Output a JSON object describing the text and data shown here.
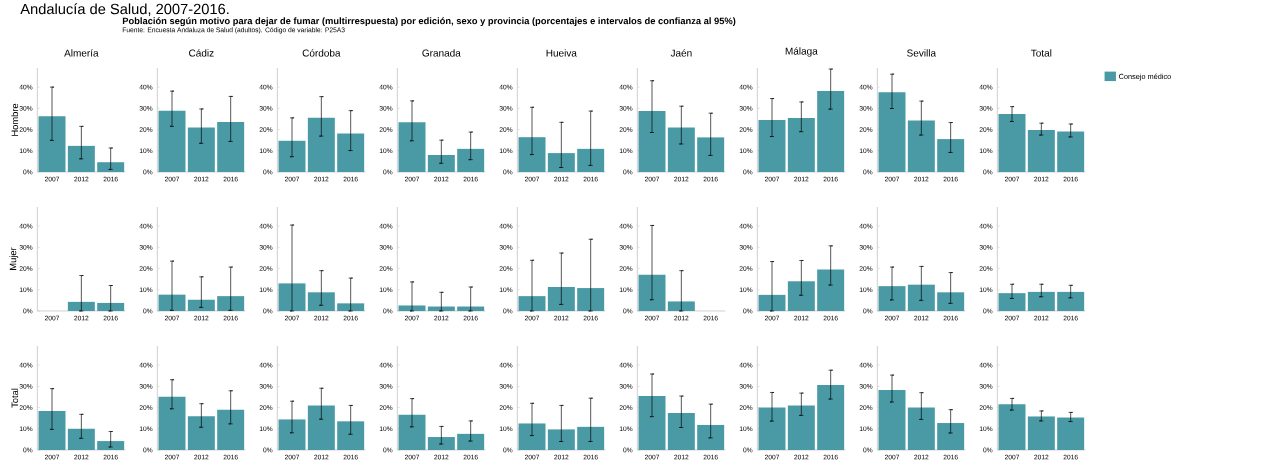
{
  "chart_data": [
    {
      "type": "bar",
      "title": "Almería",
      "ylabel": "Hombre",
      "annotations": [
        "Andalucía de Salud, 2007-2016.",
        "Población según motivo para dejar de fumar (multirrespuesta) por edición, sexo y provincia (porcentajes e intervalos de confianza al 95%)",
        "Fuente: Encuesta Andaluza de Salud (adultos). Código de variable: P25A3"
      ],
      "categories": [
        "2007",
        "2012",
        "2016"
      ],
      "series": [
        {
          "color": "#4a9aa5",
          "values": [
            26.3,
            12.3,
            4.6
          ],
          "errors": [
            [
              14.9,
              40.0
            ],
            [
              6.2,
              21.5
            ],
            [
              1.2,
              11.3
            ]
          ]
        }
      ],
      "ylim": [
        0,
        49
      ],
      "yticks": [
        {
          "value": 0,
          "label": "0%"
        },
        {
          "value": 10,
          "label": "10%"
        },
        {
          "value": 20,
          "label": "20%"
        },
        {
          "value": 30,
          "label": "30%"
        },
        {
          "value": 40,
          "label": "40%"
        }
      ]
    },
    {
      "type": "bar",
      "title": "Cádiz",
      "categories": [
        "2007",
        "2012",
        "2016"
      ],
      "series": [
        {
          "color": "#4a9aa5",
          "values": [
            28.9,
            21.0,
            23.6
          ],
          "errors": [
            [
              21.5,
              38.1
            ],
            [
              13.5,
              29.7
            ],
            [
              14.4,
              35.6
            ]
          ]
        }
      ],
      "ylim": [
        0,
        49
      ],
      "yticks": [
        {
          "value": 0,
          "label": "0%"
        },
        {
          "value": 10,
          "label": "10%"
        },
        {
          "value": 20,
          "label": "20%"
        },
        {
          "value": 30,
          "label": "30%"
        },
        {
          "value": 40,
          "label": "40%"
        }
      ]
    },
    {
      "type": "bar",
      "title": "Córdoba",
      "categories": [
        "2007",
        "2012",
        "2016"
      ],
      "series": [
        {
          "color": "#4a9aa5",
          "values": [
            14.7,
            25.5,
            18.1
          ],
          "errors": [
            [
              7.2,
              25.5
            ],
            [
              16.9,
              35.5
            ],
            [
              10.1,
              28.9
            ]
          ]
        }
      ],
      "ylim": [
        0,
        49
      ],
      "yticks": [
        {
          "value": 0,
          "label": "0%"
        },
        {
          "value": 10,
          "label": "10%"
        },
        {
          "value": 20,
          "label": "20%"
        },
        {
          "value": 30,
          "label": "30%"
        },
        {
          "value": 40,
          "label": "40%"
        }
      ]
    },
    {
      "type": "bar",
      "title": "Granada",
      "categories": [
        "2007",
        "2012",
        "2016"
      ],
      "series": [
        {
          "color": "#4a9aa5",
          "values": [
            23.4,
            8.0,
            10.9
          ],
          "errors": [
            [
              14.7,
              33.5
            ],
            [
              4.1,
              15.0
            ],
            [
              5.8,
              18.8
            ]
          ]
        }
      ],
      "ylim": [
        0,
        49
      ],
      "yticks": [
        {
          "value": 0,
          "label": "0%"
        },
        {
          "value": 10,
          "label": "10%"
        },
        {
          "value": 20,
          "label": "20%"
        },
        {
          "value": 30,
          "label": "30%"
        },
        {
          "value": 40,
          "label": "40%"
        }
      ]
    },
    {
      "type": "bar",
      "title": "Hueiva",
      "categories": [
        "2007",
        "2012",
        "2016"
      ],
      "series": [
        {
          "color": "#4a9aa5",
          "values": [
            16.4,
            8.9,
            10.9
          ],
          "errors": [
            [
              8.2,
              30.5
            ],
            [
              2.1,
              23.4
            ],
            [
              3.1,
              28.7
            ]
          ]
        }
      ],
      "ylim": [
        0,
        49
      ],
      "yticks": [
        {
          "value": 0,
          "label": "0%"
        },
        {
          "value": 10,
          "label": "10%"
        },
        {
          "value": 20,
          "label": "20%"
        },
        {
          "value": 30,
          "label": "30%"
        },
        {
          "value": 40,
          "label": "40%"
        }
      ]
    },
    {
      "type": "bar",
      "title": "Jaén",
      "categories": [
        "2007",
        "2012",
        "2016"
      ],
      "series": [
        {
          "color": "#4a9aa5",
          "values": [
            28.7,
            21.0,
            16.3
          ],
          "errors": [
            [
              18.6,
              43.0
            ],
            [
              13.2,
              31.0
            ],
            [
              7.8,
              27.7
            ]
          ]
        }
      ],
      "ylim": [
        0,
        49
      ],
      "yticks": [
        {
          "value": 0,
          "label": "0%"
        },
        {
          "value": 10,
          "label": "10%"
        },
        {
          "value": 20,
          "label": "20%"
        },
        {
          "value": 30,
          "label": "30%"
        },
        {
          "value": 40,
          "label": "40%"
        }
      ]
    },
    {
      "type": "bar",
      "title": "Málaga",
      "categories": [
        "2007",
        "2012",
        "2016"
      ],
      "series": [
        {
          "color": "#4a9aa5",
          "values": [
            24.5,
            25.4,
            38.1
          ],
          "errors": [
            [
              16.7,
              34.6
            ],
            [
              19.0,
              33.0
            ],
            [
              29.6,
              48.5
            ]
          ]
        }
      ],
      "ylim": [
        0,
        49
      ],
      "yticks": [
        {
          "value": 0,
          "label": "0%"
        },
        {
          "value": 10,
          "label": "10%"
        },
        {
          "value": 20,
          "label": "20%"
        },
        {
          "value": 30,
          "label": "30%"
        },
        {
          "value": 40,
          "label": "40%"
        }
      ]
    },
    {
      "type": "bar",
      "title": "Sevilla",
      "categories": [
        "2007",
        "2012",
        "2016"
      ],
      "series": [
        {
          "color": "#4a9aa5",
          "values": [
            37.6,
            24.3,
            15.5
          ],
          "errors": [
            [
              29.9,
              46.1
            ],
            [
              17.4,
              33.4
            ],
            [
              9.2,
              23.3
            ]
          ]
        }
      ],
      "ylim": [
        0,
        49
      ],
      "yticks": [
        {
          "value": 0,
          "label": "0%"
        },
        {
          "value": 10,
          "label": "10%"
        },
        {
          "value": 20,
          "label": "20%"
        },
        {
          "value": 30,
          "label": "30%"
        },
        {
          "value": 40,
          "label": "40%"
        }
      ]
    },
    {
      "type": "bar",
      "title": "Total",
      "legend": "right",
      "categories": [
        "2007",
        "2012",
        "2016"
      ],
      "series": [
        {
          "name": "Consejo médico",
          "color": "#4a9aa5",
          "values": [
            27.3,
            19.8,
            19.1
          ],
          "errors": [
            [
              23.8,
              30.8
            ],
            [
              17.4,
              23.0
            ],
            [
              16.5,
              22.6
            ]
          ]
        }
      ],
      "ylim": [
        0,
        49
      ],
      "yticks": [
        {
          "value": 0,
          "label": "0%"
        },
        {
          "value": 10,
          "label": "10%"
        },
        {
          "value": 20,
          "label": "20%"
        },
        {
          "value": 30,
          "label": "30%"
        },
        {
          "value": 40,
          "label": "40%"
        }
      ]
    },
    {
      "type": "bar",
      "ylabel": "Mujer",
      "categories": [
        "2007",
        "2012",
        "2016"
      ],
      "series": [
        {
          "color": "#4a9aa5",
          "values": [
            null,
            4.3,
            3.8
          ],
          "errors": [
            null,
            [
              0,
              16.7
            ],
            [
              0,
              12.0
            ]
          ]
        }
      ],
      "ylim": [
        0,
        49
      ],
      "yticks": [
        {
          "value": 0,
          "label": "0%"
        },
        {
          "value": 10,
          "label": "10%"
        },
        {
          "value": 20,
          "label": "20%"
        },
        {
          "value": 30,
          "label": "30%"
        },
        {
          "value": 40,
          "label": "40%"
        }
      ]
    },
    {
      "type": "bar",
      "categories": [
        "2007",
        "2012",
        "2016"
      ],
      "series": [
        {
          "color": "#4a9aa5",
          "values": [
            7.7,
            5.3,
            7.0
          ],
          "errors": [
            [
              0.3,
              23.5
            ],
            [
              1.7,
              16.1
            ],
            [
              0.3,
              20.7
            ]
          ]
        }
      ],
      "ylim": [
        0,
        49
      ],
      "yticks": [
        {
          "value": 0,
          "label": "0%"
        },
        {
          "value": 10,
          "label": "10%"
        },
        {
          "value": 20,
          "label": "20%"
        },
        {
          "value": 30,
          "label": "30%"
        },
        {
          "value": 40,
          "label": "40%"
        }
      ]
    },
    {
      "type": "bar",
      "categories": [
        "2007",
        "2012",
        "2016"
      ],
      "series": [
        {
          "color": "#4a9aa5",
          "values": [
            13.0,
            8.8,
            3.6
          ],
          "errors": [
            [
              0,
              40.5
            ],
            [
              2.7,
              19.0
            ],
            [
              0,
              15.5
            ]
          ]
        }
      ],
      "ylim": [
        0,
        49
      ],
      "yticks": [
        {
          "value": 0,
          "label": "0%"
        },
        {
          "value": 10,
          "label": "10%"
        },
        {
          "value": 20,
          "label": "20%"
        },
        {
          "value": 30,
          "label": "30%"
        },
        {
          "value": 40,
          "label": "40%"
        }
      ]
    },
    {
      "type": "bar",
      "categories": [
        "2007",
        "2012",
        "2016"
      ],
      "series": [
        {
          "color": "#4a9aa5",
          "values": [
            2.6,
            2.1,
            2.1
          ],
          "errors": [
            [
              0,
              13.7
            ],
            [
              0,
              8.8
            ],
            [
              0,
              11.3
            ]
          ]
        }
      ],
      "ylim": [
        0,
        49
      ],
      "yticks": [
        {
          "value": 0,
          "label": "0%"
        },
        {
          "value": 10,
          "label": "10%"
        },
        {
          "value": 20,
          "label": "20%"
        },
        {
          "value": 30,
          "label": "30%"
        },
        {
          "value": 40,
          "label": "40%"
        }
      ]
    },
    {
      "type": "bar",
      "categories": [
        "2007",
        "2012",
        "2016"
      ],
      "series": [
        {
          "color": "#4a9aa5",
          "values": [
            7.0,
            11.3,
            10.8
          ],
          "errors": [
            [
              0,
              23.9
            ],
            [
              3.1,
              27.3
            ],
            [
              0,
              33.8
            ]
          ]
        }
      ],
      "ylim": [
        0,
        49
      ],
      "yticks": [
        {
          "value": 0,
          "label": "0%"
        },
        {
          "value": 10,
          "label": "10%"
        },
        {
          "value": 20,
          "label": "20%"
        },
        {
          "value": 30,
          "label": "30%"
        },
        {
          "value": 40,
          "label": "40%"
        }
      ]
    },
    {
      "type": "bar",
      "categories": [
        "2007",
        "2012",
        "2016"
      ],
      "series": [
        {
          "color": "#4a9aa5",
          "values": [
            17.1,
            4.5,
            null
          ],
          "errors": [
            [
              5.3,
              40.3
            ],
            [
              0,
              19.0
            ],
            null
          ]
        }
      ],
      "ylim": [
        0,
        49
      ],
      "yticks": [
        {
          "value": 0,
          "label": "0%"
        },
        {
          "value": 10,
          "label": "10%"
        },
        {
          "value": 20,
          "label": "20%"
        },
        {
          "value": 30,
          "label": "30%"
        },
        {
          "value": 40,
          "label": "40%"
        }
      ]
    },
    {
      "type": "bar",
      "categories": [
        "2007",
        "2012",
        "2016"
      ],
      "series": [
        {
          "color": "#4a9aa5",
          "values": [
            7.6,
            14.0,
            19.5
          ],
          "errors": [
            [
              0,
              23.3
            ],
            [
              7.4,
              23.8
            ],
            [
              12.2,
              30.7
            ]
          ]
        }
      ],
      "ylim": [
        0,
        49
      ],
      "yticks": [
        {
          "value": 0,
          "label": "0%"
        },
        {
          "value": 10,
          "label": "10%"
        },
        {
          "value": 20,
          "label": "20%"
        },
        {
          "value": 30,
          "label": "30%"
        },
        {
          "value": 40,
          "label": "40%"
        }
      ]
    },
    {
      "type": "bar",
      "categories": [
        "2007",
        "2012",
        "2016"
      ],
      "series": [
        {
          "color": "#4a9aa5",
          "values": [
            11.7,
            12.4,
            8.8
          ],
          "errors": [
            [
              5.2,
              20.7
            ],
            [
              5.0,
              21.0
            ],
            [
              3.6,
              18.1
            ]
          ]
        }
      ],
      "ylim": [
        0,
        49
      ],
      "yticks": [
        {
          "value": 0,
          "label": "0%"
        },
        {
          "value": 10,
          "label": "10%"
        },
        {
          "value": 20,
          "label": "20%"
        },
        {
          "value": 30,
          "label": "30%"
        },
        {
          "value": 40,
          "label": "40%"
        }
      ]
    },
    {
      "type": "bar",
      "categories": [
        "2007",
        "2012",
        "2016"
      ],
      "series": [
        {
          "color": "#4a9aa5",
          "values": [
            8.4,
            9.0,
            9.0
          ],
          "errors": [
            [
              5.9,
              12.6
            ],
            [
              6.7,
              12.6
            ],
            [
              6.2,
              12.1
            ]
          ]
        }
      ],
      "ylim": [
        0,
        49
      ],
      "yticks": [
        {
          "value": 0,
          "label": "0%"
        },
        {
          "value": 10,
          "label": "10%"
        },
        {
          "value": 20,
          "label": "20%"
        },
        {
          "value": 30,
          "label": "30%"
        },
        {
          "value": 40,
          "label": "40%"
        }
      ]
    },
    {
      "type": "bar",
      "ylabel": "Total",
      "categories": [
        "2007",
        "2012",
        "2016"
      ],
      "series": [
        {
          "color": "#4a9aa5",
          "values": [
            18.4,
            10.0,
            4.2
          ],
          "errors": [
            [
              9.7,
              28.9
            ],
            [
              5.5,
              16.8
            ],
            [
              1.4,
              8.7
            ]
          ]
        }
      ],
      "ylim": [
        0,
        49
      ],
      "yticks": [
        {
          "value": 0,
          "label": "0%"
        },
        {
          "value": 10,
          "label": "10%"
        },
        {
          "value": 20,
          "label": "20%"
        },
        {
          "value": 30,
          "label": "30%"
        },
        {
          "value": 40,
          "label": "40%"
        }
      ]
    },
    {
      "type": "bar",
      "categories": [
        "2007",
        "2012",
        "2016"
      ],
      "series": [
        {
          "color": "#4a9aa5",
          "values": [
            25.1,
            15.9,
            19.0
          ],
          "errors": [
            [
              19.4,
              33.1
            ],
            [
              10.7,
              21.8
            ],
            [
              12.3,
              27.9
            ]
          ]
        }
      ],
      "ylim": [
        0,
        49
      ],
      "yticks": [
        {
          "value": 0,
          "label": "0%"
        },
        {
          "value": 10,
          "label": "10%"
        },
        {
          "value": 20,
          "label": "20%"
        },
        {
          "value": 30,
          "label": "30%"
        },
        {
          "value": 40,
          "label": "40%"
        }
      ]
    },
    {
      "type": "bar",
      "categories": [
        "2007",
        "2012",
        "2016"
      ],
      "series": [
        {
          "color": "#4a9aa5",
          "values": [
            14.4,
            21.0,
            13.5
          ],
          "errors": [
            [
              8.1,
              23.0
            ],
            [
              14.5,
              29.1
            ],
            [
              7.4,
              21.0
            ]
          ]
        }
      ],
      "ylim": [
        0,
        49
      ],
      "yticks": [
        {
          "value": 0,
          "label": "0%"
        },
        {
          "value": 10,
          "label": "10%"
        },
        {
          "value": 20,
          "label": "20%"
        },
        {
          "value": 30,
          "label": "30%"
        },
        {
          "value": 40,
          "label": "40%"
        }
      ]
    },
    {
      "type": "bar",
      "categories": [
        "2007",
        "2012",
        "2016"
      ],
      "series": [
        {
          "color": "#4a9aa5",
          "values": [
            16.6,
            6.1,
            7.6
          ],
          "errors": [
            [
              10.9,
              24.2
            ],
            [
              2.8,
              11.1
            ],
            [
              4.2,
              13.7
            ]
          ]
        }
      ],
      "ylim": [
        0,
        49
      ],
      "yticks": [
        {
          "value": 0,
          "label": "0%"
        },
        {
          "value": 10,
          "label": "10%"
        },
        {
          "value": 20,
          "label": "20%"
        },
        {
          "value": 30,
          "label": "30%"
        },
        {
          "value": 40,
          "label": "40%"
        }
      ]
    },
    {
      "type": "bar",
      "categories": [
        "2007",
        "2012",
        "2016"
      ],
      "series": [
        {
          "color": "#4a9aa5",
          "values": [
            12.5,
            9.7,
            10.9
          ],
          "errors": [
            [
              6.8,
              22.0
            ],
            [
              4.0,
              21.0
            ],
            [
              4.0,
              24.4
            ]
          ]
        }
      ],
      "ylim": [
        0,
        49
      ],
      "yticks": [
        {
          "value": 0,
          "label": "0%"
        },
        {
          "value": 10,
          "label": "10%"
        },
        {
          "value": 20,
          "label": "20%"
        },
        {
          "value": 30,
          "label": "30%"
        },
        {
          "value": 40,
          "label": "40%"
        }
      ]
    },
    {
      "type": "bar",
      "categories": [
        "2007",
        "2012",
        "2016"
      ],
      "series": [
        {
          "color": "#4a9aa5",
          "values": [
            25.4,
            17.4,
            11.8
          ],
          "errors": [
            [
              15.7,
              35.8
            ],
            [
              10.6,
              25.4
            ],
            [
              5.7,
              21.6
            ]
          ]
        }
      ],
      "ylim": [
        0,
        49
      ],
      "yticks": [
        {
          "value": 0,
          "label": "0%"
        },
        {
          "value": 10,
          "label": "10%"
        },
        {
          "value": 20,
          "label": "20%"
        },
        {
          "value": 30,
          "label": "30%"
        },
        {
          "value": 40,
          "label": "40%"
        }
      ]
    },
    {
      "type": "bar",
      "categories": [
        "2007",
        "2012",
        "2016"
      ],
      "series": [
        {
          "color": "#4a9aa5",
          "values": [
            20.0,
            21.0,
            30.6
          ],
          "errors": [
            [
              13.6,
              27.1
            ],
            [
              16.3,
              26.8
            ],
            [
              24.0,
              37.6
            ]
          ]
        }
      ],
      "ylim": [
        0,
        49
      ],
      "yticks": [
        {
          "value": 0,
          "label": "0%"
        },
        {
          "value": 10,
          "label": "10%"
        },
        {
          "value": 20,
          "label": "20%"
        },
        {
          "value": 30,
          "label": "30%"
        },
        {
          "value": 40,
          "label": "40%"
        }
      ]
    },
    {
      "type": "bar",
      "categories": [
        "2007",
        "2012",
        "2016"
      ],
      "series": [
        {
          "color": "#4a9aa5",
          "values": [
            28.3,
            20.0,
            12.7
          ],
          "errors": [
            [
              22.6,
              35.3
            ],
            [
              14.4,
              27.0
            ],
            [
              8.0,
              19.0
            ]
          ]
        }
      ],
      "ylim": [
        0,
        49
      ],
      "yticks": [
        {
          "value": 0,
          "label": "0%"
        },
        {
          "value": 10,
          "label": "10%"
        },
        {
          "value": 20,
          "label": "20%"
        },
        {
          "value": 30,
          "label": "30%"
        },
        {
          "value": 40,
          "label": "40%"
        }
      ]
    },
    {
      "type": "bar",
      "categories": [
        "2007",
        "2012",
        "2016"
      ],
      "series": [
        {
          "color": "#4a9aa5",
          "values": [
            21.6,
            15.8,
            15.3
          ],
          "errors": [
            [
              18.8,
              24.3
            ],
            [
              13.7,
              18.4
            ],
            [
              13.4,
              17.7
            ]
          ]
        }
      ],
      "ylim": [
        0,
        49
      ],
      "yticks": [
        {
          "value": 0,
          "label": "0%"
        },
        {
          "value": 10,
          "label": "10%"
        },
        {
          "value": 20,
          "label": "20%"
        },
        {
          "value": 30,
          "label": "30%"
        },
        {
          "value": 40,
          "label": "40%"
        }
      ]
    }
  ]
}
